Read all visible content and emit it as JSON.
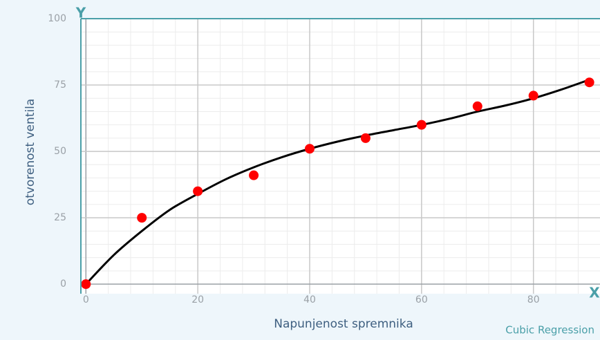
{
  "chart_data": {
    "type": "scatter",
    "x_label": "Napunjenost spremnika",
    "y_label": "otvorenost ventila",
    "annotation": "Cubic Regression",
    "series": [
      {
        "name": "data",
        "type": "scatter",
        "color": "#ff0000",
        "x": [
          0,
          10,
          20,
          30,
          40,
          50,
          60,
          70,
          80,
          90
        ],
        "values": [
          0,
          25,
          35,
          41,
          51,
          55,
          60,
          67,
          71,
          76
        ]
      },
      {
        "name": "fit",
        "type": "line",
        "color": "#000000",
        "x": [
          0,
          5,
          10,
          15,
          20,
          25,
          30,
          35,
          40,
          45,
          50,
          55,
          60,
          65,
          70,
          75,
          80,
          85,
          90
        ],
        "values": [
          0,
          11,
          20,
          28,
          34,
          39.5,
          44,
          47.8,
          51,
          53.7,
          56,
          58,
          60,
          62.3,
          65,
          67.3,
          70,
          73.3,
          77
        ]
      }
    ],
    "xlim": [
      -0.9,
      91.9
    ],
    "ylim": [
      -3.6,
      100
    ],
    "xticks": [
      0,
      20,
      40,
      60,
      80
    ],
    "yticks": [
      0,
      25,
      50,
      75,
      100
    ],
    "minor_grid": {
      "x": 4,
      "y": 5
    },
    "grid": true
  }
}
